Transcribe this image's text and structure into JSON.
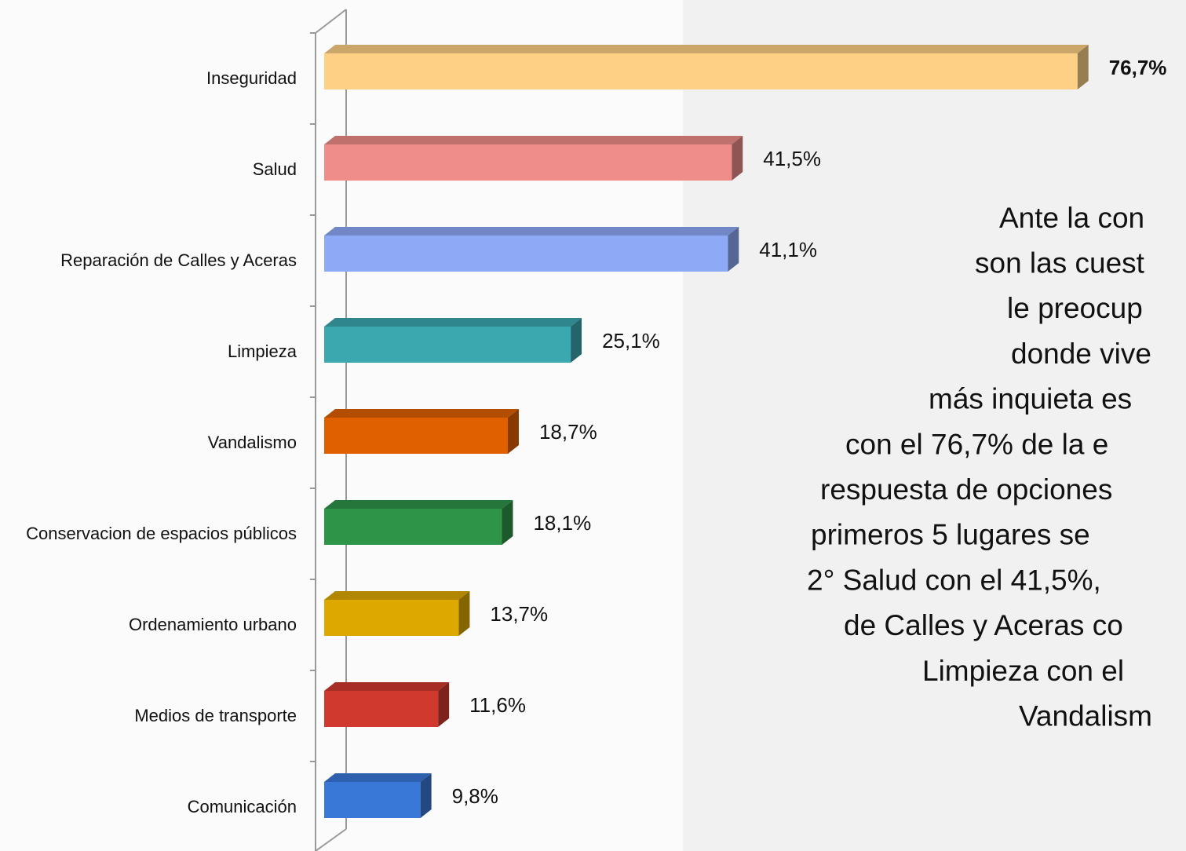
{
  "chart_data": {
    "type": "bar3d_horizontal",
    "categories": [
      "Inseguridad",
      "Salud",
      "Reparación de Calles y Aceras",
      "Limpieza",
      "Vandalismo",
      "Conservacion de espacios públicos",
      "Ordenamiento urbano",
      "Medios de transporte",
      "Comunicación"
    ],
    "values": [
      76.7,
      41.5,
      41.1,
      25.1,
      18.7,
      18.1,
      13.7,
      11.6,
      9.8
    ],
    "value_labels": [
      "76,7%",
      "41,5%",
      "41,1%",
      "25,1%",
      "18,7%",
      "18,1%",
      "13,7%",
      "11,6%",
      "9,8%"
    ],
    "colors": [
      "#fdd086",
      "#ef8d8a",
      "#8eaaf7",
      "#3ba8b0",
      "#e06000",
      "#2e9448",
      "#dda800",
      "#d03a2e",
      "#3a78d8"
    ],
    "highlight_category": "Inseguridad",
    "xlim": [
      0,
      80
    ],
    "annotation_lines": [
      "Ante la con",
      "son las cuest",
      "le preocup",
      "donde vive",
      "más inquieta es",
      "con el 76,7% de la e",
      "respuesta de opciones",
      "primeros 5 lugares se",
      "2° Salud con el 41,5%,",
      "de Calles y Aceras co",
      "Limpieza con el",
      "Vandalism"
    ]
  }
}
